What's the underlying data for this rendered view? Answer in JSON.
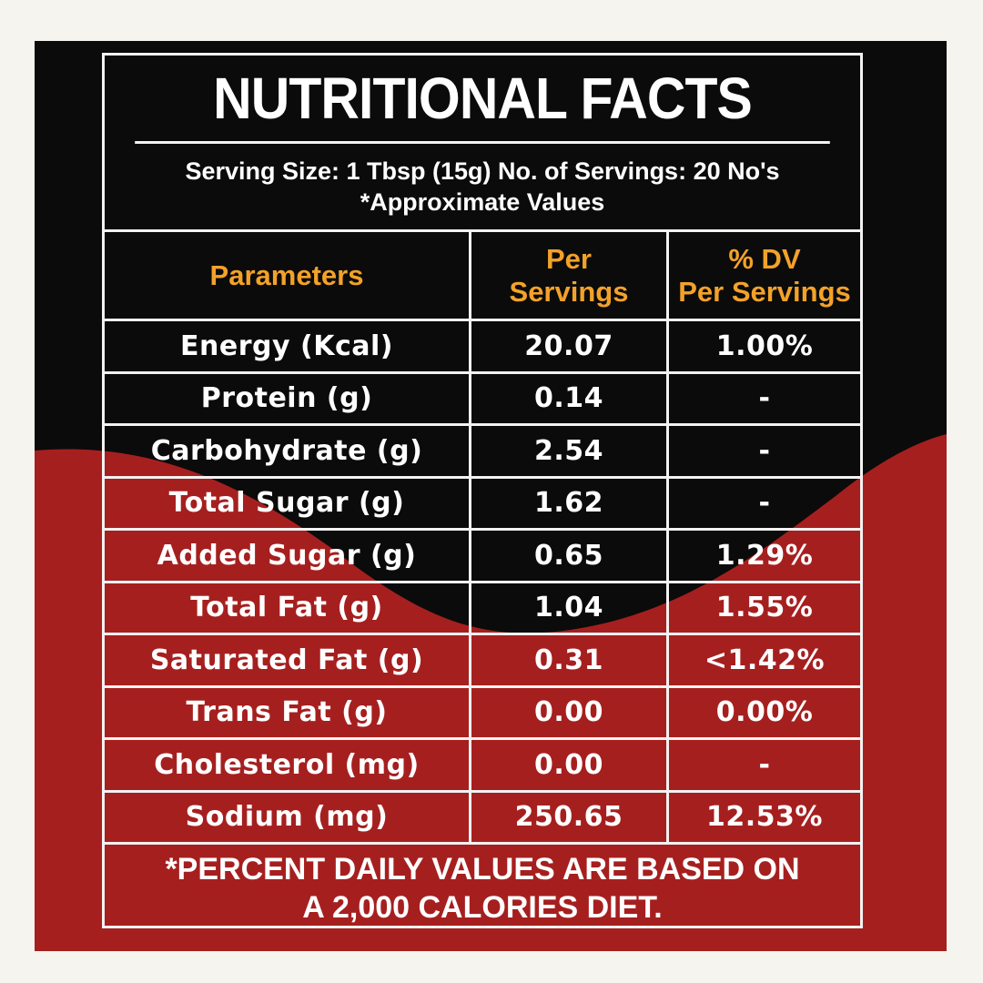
{
  "title": "NUTRITIONAL FACTS",
  "serving_line": "Serving Size: 1 Tbsp (15g) No. of Servings: 20 No's",
  "approx_note": "*Approximate Values",
  "headers": {
    "parameters": "Parameters",
    "per_servings_1": "Per",
    "per_servings_2": "Servings",
    "dv_1": "% DV",
    "dv_2": "Per Servings"
  },
  "rows": [
    {
      "param": "Energy (Kcal)",
      "value": "20.07",
      "dv": "1.00%"
    },
    {
      "param": "Protein (g)",
      "value": "0.14",
      "dv": "-"
    },
    {
      "param": "Carbohydrate (g)",
      "value": "2.54",
      "dv": "-"
    },
    {
      "param": "Total Sugar (g)",
      "value": "1.62",
      "dv": "-"
    },
    {
      "param": "Added Sugar (g)",
      "value": "0.65",
      "dv": "1.29%"
    },
    {
      "param": "Total Fat (g)",
      "value": "1.04",
      "dv": "1.55%"
    },
    {
      "param": "Saturated Fat (g)",
      "value": "0.31",
      "dv": "<1.42%"
    },
    {
      "param": "Trans Fat (g)",
      "value": "0.00",
      "dv": "0.00%"
    },
    {
      "param": "Cholesterol (mg)",
      "value": "0.00",
      "dv": "-"
    },
    {
      "param": "Sodium (mg)",
      "value": "250.65",
      "dv": "12.53%"
    }
  ],
  "footer_1": "*PERCENT DAILY VALUES ARE BASED ON",
  "footer_2": "A 2,000 CALORIES DIET.",
  "colors": {
    "background": "#0b0b0b",
    "wave": "#a61f1f",
    "header_text": "#f3a229",
    "text": "#ffffff"
  }
}
